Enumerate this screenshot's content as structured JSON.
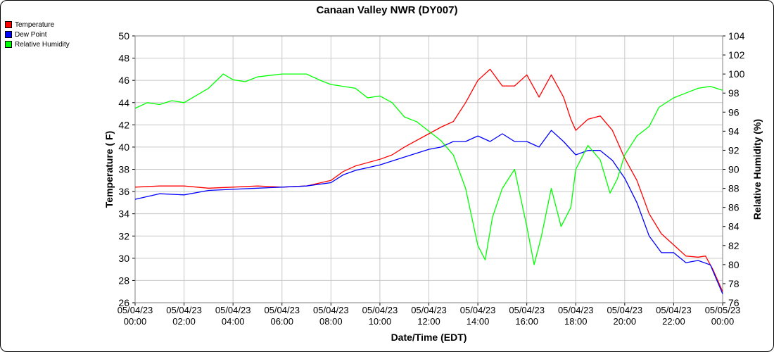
{
  "chart_data": {
    "type": "line",
    "title": "Canaan Valley NWR (DY007)",
    "xlabel": "Date/Time (EDT)",
    "ylabel_left": "Temperature ( F)",
    "ylabel_right": "Relative Humidity (%)",
    "ylim_left": [
      26,
      50
    ],
    "ylim_right": [
      76,
      104
    ],
    "yticks_left": [
      26,
      28,
      30,
      32,
      34,
      36,
      38,
      40,
      42,
      44,
      46,
      48,
      50
    ],
    "yticks_right": [
      76,
      78,
      80,
      82,
      84,
      86,
      88,
      90,
      92,
      94,
      96,
      98,
      100,
      102,
      104
    ],
    "xlim_hours": [
      0,
      24
    ],
    "x_ticks": [
      {
        "date": "05/04/23",
        "time": "00:00"
      },
      {
        "date": "05/04/23",
        "time": "02:00"
      },
      {
        "date": "05/04/23",
        "time": "04:00"
      },
      {
        "date": "05/04/23",
        "time": "06:00"
      },
      {
        "date": "05/04/23",
        "time": "08:00"
      },
      {
        "date": "05/04/23",
        "time": "10:00"
      },
      {
        "date": "05/04/23",
        "time": "12:00"
      },
      {
        "date": "05/04/23",
        "time": "14:00"
      },
      {
        "date": "05/04/23",
        "time": "16:00"
      },
      {
        "date": "05/04/23",
        "time": "18:00"
      },
      {
        "date": "05/04/23",
        "time": "20:00"
      },
      {
        "date": "05/04/23",
        "time": "22:00"
      },
      {
        "date": "05/05/23",
        "time": "00:00"
      }
    ],
    "grid": true,
    "legend_position": "top-left",
    "series": [
      {
        "name": "Temperature",
        "axis": "left",
        "color": "#ff0000",
        "points": [
          [
            0,
            36.4
          ],
          [
            1,
            36.5
          ],
          [
            2,
            36.5
          ],
          [
            3,
            36.3
          ],
          [
            4,
            36.4
          ],
          [
            5,
            36.5
          ],
          [
            6,
            36.4
          ],
          [
            7,
            36.5
          ],
          [
            8,
            37.0
          ],
          [
            8.5,
            37.8
          ],
          [
            9,
            38.3
          ],
          [
            10,
            38.9
          ],
          [
            10.5,
            39.3
          ],
          [
            11,
            40.0
          ],
          [
            12,
            41.2
          ],
          [
            12.5,
            41.8
          ],
          [
            13,
            42.3
          ],
          [
            13.5,
            44.0
          ],
          [
            14,
            46.0
          ],
          [
            14.5,
            47.0
          ],
          [
            15,
            45.5
          ],
          [
            15.5,
            45.5
          ],
          [
            16,
            46.5
          ],
          [
            16.5,
            44.5
          ],
          [
            17,
            46.5
          ],
          [
            17.5,
            44.5
          ],
          [
            17.8,
            42.5
          ],
          [
            18,
            41.5
          ],
          [
            18.5,
            42.5
          ],
          [
            19,
            42.8
          ],
          [
            19.5,
            41.5
          ],
          [
            20,
            39.0
          ],
          [
            20.5,
            37.0
          ],
          [
            21,
            34.0
          ],
          [
            21.5,
            32.2
          ],
          [
            22,
            31.2
          ],
          [
            22.5,
            30.2
          ],
          [
            23,
            30.1
          ],
          [
            23.3,
            30.2
          ],
          [
            23.6,
            29.0
          ],
          [
            24,
            27.0
          ]
        ]
      },
      {
        "name": "Dew Point",
        "axis": "left",
        "color": "#0000ff",
        "points": [
          [
            0,
            35.3
          ],
          [
            1,
            35.8
          ],
          [
            2,
            35.7
          ],
          [
            3,
            36.1
          ],
          [
            4,
            36.2
          ],
          [
            5,
            36.3
          ],
          [
            6,
            36.4
          ],
          [
            7,
            36.5
          ],
          [
            8,
            36.8
          ],
          [
            8.5,
            37.5
          ],
          [
            9,
            37.9
          ],
          [
            10,
            38.4
          ],
          [
            11,
            39.1
          ],
          [
            12,
            39.8
          ],
          [
            12.5,
            40.0
          ],
          [
            13,
            40.5
          ],
          [
            13.5,
            40.5
          ],
          [
            14,
            41.0
          ],
          [
            14.5,
            40.5
          ],
          [
            15,
            41.2
          ],
          [
            15.5,
            40.5
          ],
          [
            16,
            40.5
          ],
          [
            16.5,
            40.0
          ],
          [
            17,
            41.5
          ],
          [
            17.5,
            40.5
          ],
          [
            18,
            39.3
          ],
          [
            18.5,
            39.7
          ],
          [
            19,
            39.7
          ],
          [
            19.5,
            38.8
          ],
          [
            20,
            37.2
          ],
          [
            20.5,
            35.0
          ],
          [
            21,
            32.0
          ],
          [
            21.5,
            30.5
          ],
          [
            22,
            30.5
          ],
          [
            22.5,
            29.6
          ],
          [
            23,
            29.8
          ],
          [
            23.5,
            29.4
          ],
          [
            24,
            26.8
          ]
        ]
      },
      {
        "name": "Relative Humidity",
        "axis": "right",
        "color": "#00ff00",
        "points": [
          [
            0,
            96.4
          ],
          [
            0.5,
            97.0
          ],
          [
            1,
            96.8
          ],
          [
            1.5,
            97.2
          ],
          [
            2,
            97.0
          ],
          [
            3,
            98.5
          ],
          [
            3.6,
            100.0
          ],
          [
            4,
            99.4
          ],
          [
            4.5,
            99.2
          ],
          [
            5,
            99.7
          ],
          [
            6,
            100.0
          ],
          [
            7,
            100.0
          ],
          [
            7.6,
            99.3
          ],
          [
            8,
            98.9
          ],
          [
            9,
            98.5
          ],
          [
            9.5,
            97.5
          ],
          [
            10,
            97.7
          ],
          [
            10.5,
            97.0
          ],
          [
            11,
            95.5
          ],
          [
            11.5,
            95.0
          ],
          [
            12,
            94.0
          ],
          [
            12.5,
            93.0
          ],
          [
            13,
            91.5
          ],
          [
            13.5,
            88.0
          ],
          [
            14,
            82.0
          ],
          [
            14.3,
            80.5
          ],
          [
            14.6,
            85.0
          ],
          [
            15,
            88.0
          ],
          [
            15.5,
            90.0
          ],
          [
            16,
            84.0
          ],
          [
            16.3,
            80.0
          ],
          [
            16.6,
            83.0
          ],
          [
            17,
            88.0
          ],
          [
            17.4,
            84.0
          ],
          [
            17.8,
            86.0
          ],
          [
            18,
            90.0
          ],
          [
            18.5,
            92.5
          ],
          [
            19,
            91.0
          ],
          [
            19.4,
            87.5
          ],
          [
            19.7,
            89.0
          ],
          [
            20,
            91.5
          ],
          [
            20.5,
            93.5
          ],
          [
            21,
            94.5
          ],
          [
            21.4,
            96.5
          ],
          [
            22,
            97.5
          ],
          [
            22.5,
            98.0
          ],
          [
            23,
            98.5
          ],
          [
            23.5,
            98.7
          ],
          [
            24,
            98.3
          ]
        ]
      }
    ]
  }
}
